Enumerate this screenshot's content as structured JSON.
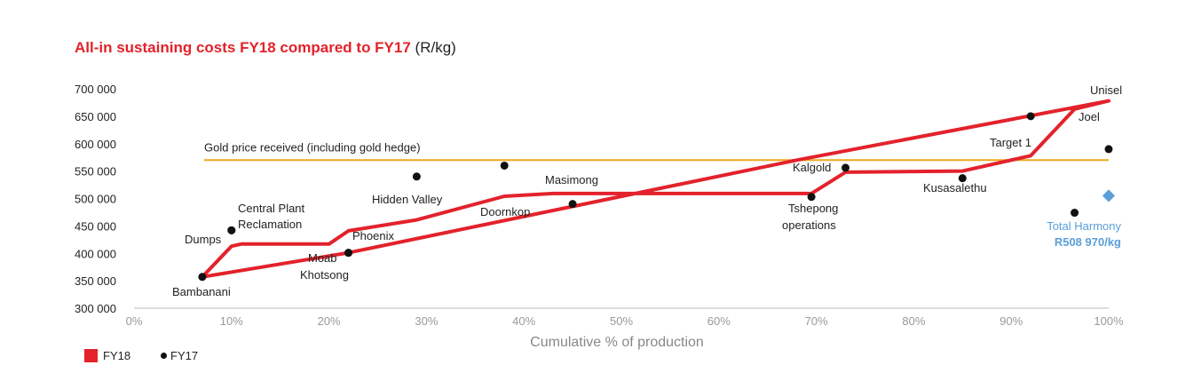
{
  "title": {
    "main": "All-in sustaining costs FY18 compared to FY17",
    "unit": "(R/kg)"
  },
  "colors": {
    "fy18": "#e3222b",
    "fy17": "#111111",
    "gold": "#f0a81c",
    "total": "#5b9fd8"
  },
  "legend": {
    "fy18": "FY18",
    "fy17": "FY17"
  },
  "chart_data": {
    "type": "line",
    "title": "All-in sustaining costs FY18 compared to FY17 (R/kg)",
    "xlabel": "Cumulative % of production",
    "ylabel": "",
    "xlim": [
      0,
      100
    ],
    "ylim": [
      300000,
      700000
    ],
    "x_ticks": [
      "0%",
      "10%",
      "20%",
      "30%",
      "40%",
      "50%",
      "60%",
      "70%",
      "80%",
      "90%",
      "100%"
    ],
    "y_ticks": [
      "300 000",
      "350 000",
      "400 000",
      "450 000",
      "500 000",
      "550 000",
      "600 000",
      "650 000",
      "700 000"
    ],
    "gold_price": {
      "label": "Gold price received (including gold hedge)",
      "value": 570000
    },
    "series": [
      {
        "name": "FY18",
        "mark": "line",
        "points": [
          [
            7.0,
            357000
          ],
          [
            10.0,
            413000
          ],
          [
            11.0,
            417000
          ],
          [
            20.0,
            417000
          ],
          [
            22.0,
            441000
          ],
          [
            29.0,
            461000
          ],
          [
            38.0,
            504000
          ],
          [
            43.0,
            509000
          ],
          [
            69.5,
            509000
          ],
          [
            73.0,
            548000
          ],
          [
            85.0,
            550000
          ],
          [
            92.0,
            578000
          ],
          [
            96.5,
            663000
          ],
          [
            100.0,
            678000
          ],
          [
            68.0,
            570000
          ],
          [
            22.0,
            401000
          ],
          [
            7.0,
            357000
          ]
        ]
      },
      {
        "name": "FY17",
        "mark": "scatter",
        "points": [
          {
            "label": "Bambanani",
            "x": 7.0,
            "y": 357000
          },
          {
            "label": "Dumps",
            "x": 10.0,
            "y": 442000
          },
          {
            "label": "Central Plant Reclamation",
            "x": 10.0,
            "y": 442000
          },
          {
            "label": "Moab Khotsong",
            "x": 22.0,
            "y": 401000
          },
          {
            "label": "Phoenix",
            "x": 22.0,
            "y": 401000
          },
          {
            "label": "Hidden Valley",
            "x": 29.0,
            "y": 540000
          },
          {
            "label": "Doornkop",
            "x": 38.0,
            "y": 560000
          },
          {
            "label": "Masimong",
            "x": 45.0,
            "y": 490000
          },
          {
            "label": "Tshepong operations",
            "x": 69.5,
            "y": 503000
          },
          {
            "label": "Kalgold",
            "x": 73.0,
            "y": 556000
          },
          {
            "label": "Kusasalethu",
            "x": 85.0,
            "y": 537000
          },
          {
            "label": "Target 1",
            "x": 92.0,
            "y": 650000
          },
          {
            "label": "Joel",
            "x": 96.5,
            "y": 474000
          },
          {
            "label": "Unisel",
            "x": 100.0,
            "y": 590000
          }
        ]
      }
    ],
    "total_harmony": {
      "label": "Total Harmony",
      "value_label": "R508 970/kg",
      "x": 100.0,
      "y": 505000
    },
    "annotations": [
      {
        "text": "Bambanani"
      },
      {
        "text": "Dumps"
      },
      {
        "text": "Central Plant"
      },
      {
        "text": "Reclamation"
      },
      {
        "text": "Moab"
      },
      {
        "text": "Khotsong"
      },
      {
        "text": "Phoenix"
      },
      {
        "text": "Hidden Valley"
      },
      {
        "text": "Doornkop"
      },
      {
        "text": "Masimong"
      },
      {
        "text": "Tshepong"
      },
      {
        "text": "operations"
      },
      {
        "text": "Kalgold"
      },
      {
        "text": "Kusasalethu"
      },
      {
        "text": "Target 1"
      },
      {
        "text": "Joel"
      },
      {
        "text": "Unisel"
      }
    ]
  }
}
